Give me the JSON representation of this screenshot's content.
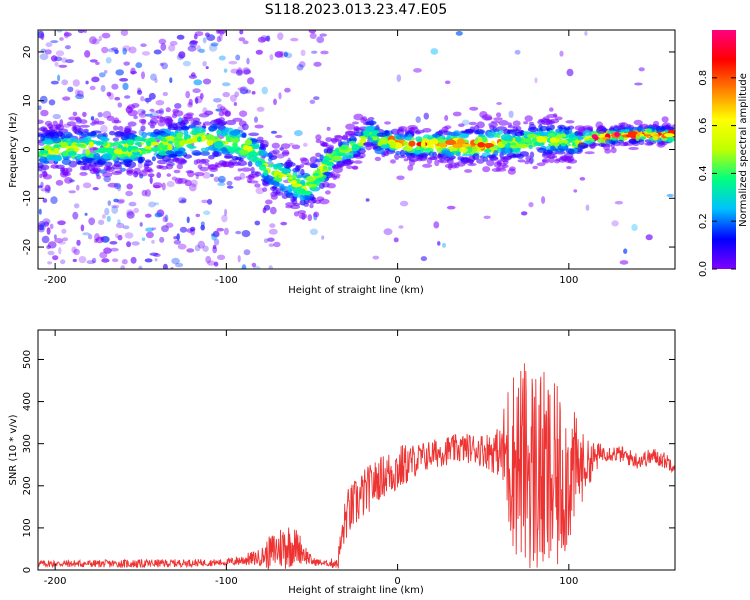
{
  "figure": {
    "title": "S118.2023.013.23.47.E05"
  },
  "chart_data": [
    {
      "type": "heatmap",
      "xlabel": "Height of straight line (km)",
      "ylabel": "Frequency (Hz)",
      "xlim": [
        -210,
        162
      ],
      "ylim": [
        -24.5,
        24.5
      ],
      "xticks": [
        -200,
        -100,
        0,
        100
      ],
      "yticks": [
        -20,
        -10,
        0,
        10,
        20
      ],
      "grid": false,
      "colorbar": {
        "label": "Normalized spectral amplitude",
        "range": [
          0,
          1
        ],
        "ticks": [
          0.0,
          0.2,
          0.4,
          0.6,
          0.8
        ],
        "colormap": [
          "#8000ff",
          "#0000ff",
          "#00c0ff",
          "#00ff80",
          "#c0ff00",
          "#ffff00",
          "#ff8000",
          "#ff0000",
          "#ff0080"
        ]
      },
      "ridge": {
        "x": [
          -200,
          -180,
          -160,
          -140,
          -120,
          -100,
          -85,
          -75,
          -65,
          -55,
          -48,
          -42,
          -35,
          -28,
          -20,
          -15,
          -10,
          -5,
          0,
          10,
          20,
          30,
          40,
          50,
          60,
          70,
          80,
          90,
          100,
          105,
          110,
          120,
          130,
          140,
          150,
          160
        ],
        "y": [
          0,
          0.5,
          0,
          1,
          2,
          2,
          0,
          -4,
          -6,
          -8,
          -6,
          -3,
          -1,
          0,
          2,
          4,
          1,
          2,
          1,
          1,
          1,
          1,
          1,
          1,
          1.5,
          1,
          2,
          2,
          2,
          1,
          2.5,
          2.5,
          3,
          3,
          3,
          3
        ]
      }
    },
    {
      "type": "line",
      "xlabel": "Height of straight line (km)",
      "ylabel": "SNR (10 * v/v)",
      "xlim": [
        -210,
        162
      ],
      "ylim": [
        0,
        570
      ],
      "xticks": [
        -200,
        -100,
        0,
        100
      ],
      "yticks": [
        0,
        100,
        200,
        300,
        400,
        500
      ],
      "grid": false,
      "color": "#ee3333",
      "envelope": {
        "x": [
          -210,
          -150,
          -100,
          -80,
          -75,
          -65,
          -58,
          -50,
          -40,
          -35,
          -30,
          -20,
          -10,
          0,
          10,
          20,
          30,
          40,
          50,
          60,
          65,
          70,
          80,
          90,
          100,
          110,
          120,
          130,
          140,
          150,
          162
        ],
        "base": [
          15,
          15,
          18,
          30,
          40,
          60,
          55,
          20,
          15,
          20,
          130,
          180,
          220,
          240,
          260,
          275,
          285,
          290,
          285,
          280,
          270,
          260,
          240,
          200,
          230,
          250,
          280,
          275,
          260,
          270,
          250
        ],
        "spread": [
          8,
          10,
          8,
          20,
          40,
          60,
          40,
          10,
          6,
          25,
          60,
          60,
          50,
          60,
          40,
          35,
          35,
          35,
          40,
          60,
          200,
          240,
          260,
          250,
          180,
          60,
          20,
          20,
          20,
          20,
          20
        ]
      }
    }
  ]
}
